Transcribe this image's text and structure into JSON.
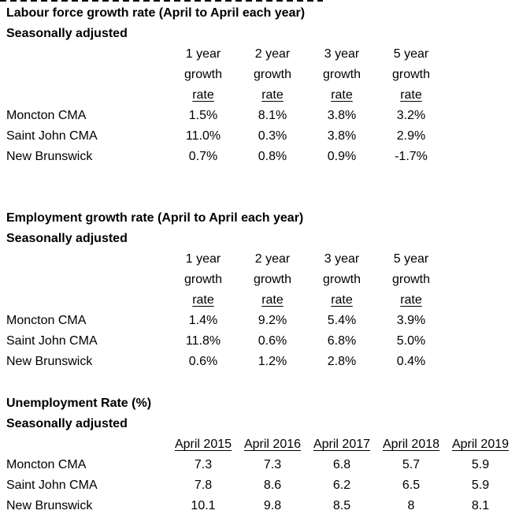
{
  "colors": {
    "text": "#000000",
    "background": "#ffffff"
  },
  "tables": [
    {
      "title": "Labour force growth rate (April to April each year)",
      "subtitle": "Seasonally adjusted",
      "header_row1": [
        "1 year",
        "2 year",
        "3 year",
        "5 year"
      ],
      "header_row2": [
        "growth",
        "growth",
        "growth",
        "growth"
      ],
      "header_row3": [
        "rate",
        "rate",
        "rate",
        "rate"
      ],
      "rows": [
        {
          "label": "Moncton CMA",
          "values": [
            "1.5%",
            "8.1%",
            "3.8%",
            "3.2%"
          ]
        },
        {
          "label": "Saint John CMA",
          "values": [
            "11.0%",
            "0.3%",
            "3.8%",
            "2.9%"
          ]
        },
        {
          "label": "New Brunswick",
          "values": [
            "0.7%",
            "0.8%",
            "0.9%",
            "-1.7%"
          ]
        }
      ]
    },
    {
      "title": "Employment growth rate (April to April each year)",
      "subtitle": "Seasonally adjusted",
      "header_row1": [
        "1 year",
        "2 year",
        "3 year",
        "5 year"
      ],
      "header_row2": [
        "growth",
        "growth",
        "growth",
        "growth"
      ],
      "header_row3": [
        "rate",
        "rate",
        "rate",
        "rate"
      ],
      "rows": [
        {
          "label": "Moncton CMA",
          "values": [
            "1.4%",
            "9.2%",
            "5.4%",
            "3.9%"
          ]
        },
        {
          "label": "Saint John CMA",
          "values": [
            "11.8%",
            "0.6%",
            "6.8%",
            "5.0%"
          ]
        },
        {
          "label": "New Brunswick",
          "values": [
            "0.6%",
            "1.2%",
            "2.8%",
            "0.4%"
          ]
        }
      ]
    },
    {
      "title": "Unemployment Rate (%)",
      "subtitle": "Seasonally adjusted",
      "columns": [
        "April 2015",
        "April 2016",
        "April 2017",
        "April 2018",
        "April 2019"
      ],
      "rows": [
        {
          "label": "Moncton CMA",
          "values": [
            "7.3",
            "7.3",
            "6.8",
            "5.7",
            "5.9"
          ]
        },
        {
          "label": "Saint John CMA",
          "values": [
            "7.8",
            "8.6",
            "6.2",
            "6.5",
            "5.9"
          ]
        },
        {
          "label": "New Brunswick",
          "values": [
            "10.1",
            "9.8",
            "8.5",
            "8",
            "8.1"
          ]
        }
      ]
    }
  ]
}
